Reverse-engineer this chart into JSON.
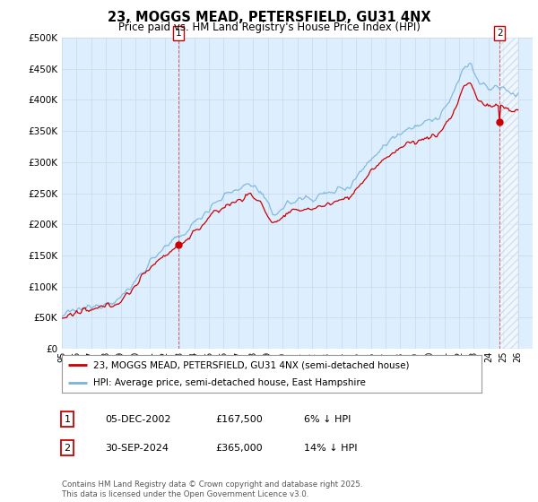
{
  "title": "23, MOGGS MEAD, PETERSFIELD, GU31 4NX",
  "subtitle": "Price paid vs. HM Land Registry's House Price Index (HPI)",
  "ylim": [
    0,
    500000
  ],
  "yticks": [
    0,
    50000,
    100000,
    150000,
    200000,
    250000,
    300000,
    350000,
    400000,
    450000,
    500000
  ],
  "ytick_labels": [
    "£0",
    "£50K",
    "£100K",
    "£150K",
    "£200K",
    "£250K",
    "£300K",
    "£350K",
    "£400K",
    "£450K",
    "£500K"
  ],
  "hpi_color": "#7ab4d8",
  "price_color": "#cc0000",
  "vline_color": "#cc0000",
  "chart_bg": "#ddeeff",
  "marker1_year": 2002.92,
  "marker2_year": 2024.75,
  "marker1_price": 167500,
  "marker2_price": 365000,
  "hpi1": 178191,
  "hpi2": 424419,
  "legend_line1": "23, MOGGS MEAD, PETERSFIELD, GU31 4NX (semi-detached house)",
  "legend_line2": "HPI: Average price, semi-detached house, East Hampshire",
  "table_row1": [
    "1",
    "05-DEC-2002",
    "£167,500",
    "6% ↓ HPI"
  ],
  "table_row2": [
    "2",
    "30-SEP-2024",
    "£365,000",
    "14% ↓ HPI"
  ],
  "footer": "Contains HM Land Registry data © Crown copyright and database right 2025.\nThis data is licensed under the Open Government Licence v3.0.",
  "background_color": "#ffffff",
  "grid_color": "#c8d8e8"
}
